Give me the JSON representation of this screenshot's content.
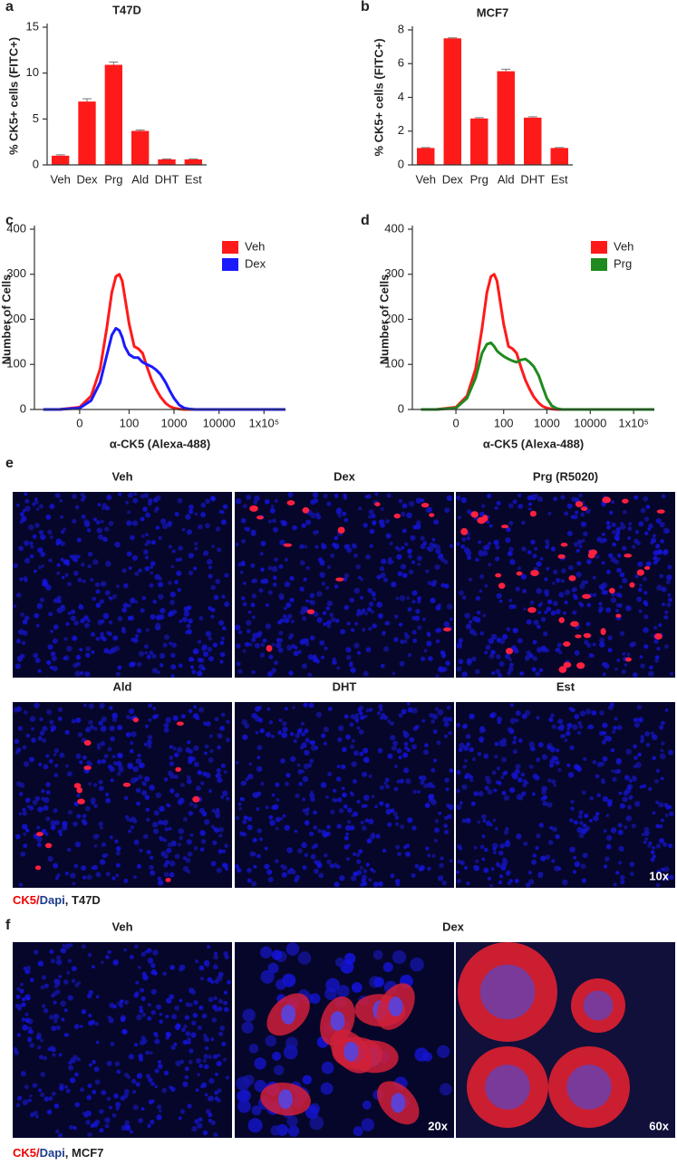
{
  "chart_data": [
    {
      "type": "bar",
      "panel_label": "a",
      "title": "T47D",
      "ylabel": "% CK5+ cells (FITC+)",
      "categories": [
        "Veh",
        "Dex",
        "Prg",
        "Ald",
        "DHT",
        "Est"
      ],
      "values": [
        1.0,
        6.9,
        10.9,
        3.7,
        0.6,
        0.6
      ],
      "errors": [
        0.1,
        0.3,
        0.3,
        0.1,
        0.05,
        0.05
      ],
      "color": "#ff1a1a",
      "ylim": [
        0,
        15
      ],
      "yticks": [
        0,
        5,
        10,
        15
      ]
    },
    {
      "type": "bar",
      "panel_label": "b",
      "title": "MCF7",
      "ylabel": "% CK5+ cells (FITC+)",
      "categories": [
        "Veh",
        "Dex",
        "Prg",
        "Ald",
        "DHT",
        "Est"
      ],
      "values": [
        1.0,
        7.5,
        2.75,
        5.55,
        2.8,
        1.0
      ],
      "errors": [
        0.03,
        0.03,
        0.05,
        0.12,
        0.05,
        0.03
      ],
      "color": "#ff1a1a",
      "ylim": [
        0,
        8
      ],
      "yticks": [
        0,
        2,
        4,
        6,
        8
      ]
    },
    {
      "type": "line",
      "panel_label": "c",
      "ylabel": "Number of Cells",
      "xlabel": "α-CK5 (Alexa-488)",
      "xscale": "biexponential",
      "legend": "upper right",
      "x": [
        -50,
        -20,
        0,
        10,
        20,
        30,
        40,
        50,
        60,
        70,
        80,
        100,
        130,
        160,
        200,
        250,
        320,
        400,
        500,
        650,
        800,
        1000,
        1300,
        1700,
        2200,
        3000,
        5000,
        10000,
        30000,
        100000,
        300000
      ],
      "series": [
        {
          "name": "Veh",
          "color": "#ff1a1a",
          "values": [
            0,
            0,
            5,
            30,
            90,
            180,
            260,
            295,
            300,
            285,
            250,
            190,
            140,
            135,
            125,
            95,
            65,
            45,
            28,
            14,
            7,
            3,
            1,
            0,
            0,
            0,
            0,
            0,
            0,
            0,
            0
          ]
        },
        {
          "name": "Dex",
          "color": "#1a1aff",
          "values": [
            0,
            0,
            3,
            20,
            60,
            120,
            165,
            180,
            175,
            160,
            140,
            122,
            115,
            115,
            105,
            100,
            95,
            88,
            78,
            60,
            42,
            25,
            10,
            3,
            1,
            0,
            0,
            0,
            0,
            0,
            0
          ]
        }
      ],
      "xlim": [
        -80,
        300000
      ],
      "xticks": [
        0,
        100,
        1000,
        10000,
        {
          "value": 100000,
          "label": "1x10⁵"
        }
      ],
      "ylim": [
        0,
        400
      ],
      "yticks": [
        0,
        100,
        200,
        300,
        400
      ]
    },
    {
      "type": "line",
      "panel_label": "d",
      "ylabel": "Number of Cells",
      "xlabel": "α-CK5 (Alexa-488)",
      "xscale": "biexponential",
      "legend": "upper right",
      "x": [
        -50,
        -20,
        0,
        10,
        20,
        30,
        40,
        50,
        60,
        70,
        80,
        100,
        130,
        160,
        200,
        250,
        320,
        400,
        500,
        650,
        800,
        1000,
        1300,
        1700,
        2200,
        3000,
        5000,
        10000,
        30000,
        100000,
        300000
      ],
      "series": [
        {
          "name": "Veh",
          "color": "#ff1a1a",
          "values": [
            0,
            0,
            5,
            30,
            90,
            180,
            260,
            295,
            300,
            285,
            250,
            190,
            140,
            135,
            125,
            95,
            65,
            45,
            28,
            14,
            7,
            3,
            1,
            0,
            0,
            0,
            0,
            0,
            0,
            0,
            0
          ]
        },
        {
          "name": "Prg",
          "color": "#1f8a1f",
          "values": [
            0,
            0,
            3,
            25,
            70,
            125,
            145,
            148,
            140,
            130,
            125,
            118,
            112,
            108,
            105,
            110,
            112,
            105,
            95,
            75,
            50,
            25,
            8,
            2,
            0,
            0,
            0,
            0,
            0,
            0,
            0
          ]
        }
      ],
      "xlim": [
        -80,
        300000
      ],
      "xticks": [
        0,
        100,
        1000,
        10000,
        {
          "value": 100000,
          "label": "1x10⁵"
        }
      ],
      "ylim": [
        0,
        400
      ],
      "yticks": [
        0,
        100,
        200,
        300,
        400
      ]
    }
  ],
  "panel_e": {
    "label": "e",
    "titles": [
      "Veh",
      "Dex",
      "Prg (R5020)",
      "Ald",
      "DHT",
      "Est"
    ],
    "magnification": "10x",
    "caption": [
      "CK5/",
      "Dapi",
      ", T47D"
    ]
  },
  "panel_f": {
    "label": "f",
    "titles": [
      "Veh",
      "Dex"
    ],
    "magnifications": [
      "20x",
      "60x"
    ],
    "caption": [
      "CK5/",
      "Dapi",
      ", MCF7"
    ]
  }
}
